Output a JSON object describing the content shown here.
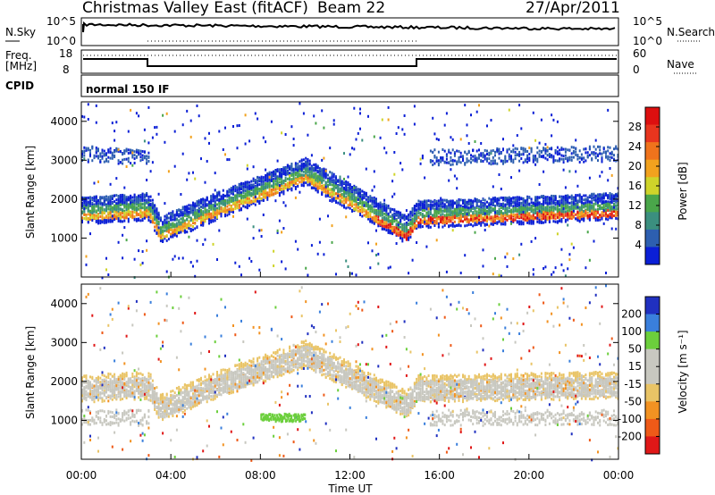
{
  "header": {
    "title": "Christmas Valley East (fitACF)",
    "beam": "Beam 22",
    "date": "27/Apr/2011"
  },
  "panels": {
    "nsky": {
      "left_label": "N.Sky",
      "left_ticks": [
        "10^5",
        "10^0"
      ],
      "right_ticks": [
        "10^5",
        "10^0"
      ],
      "right_label": "N.Search"
    },
    "freq": {
      "left_label_1": "Freq.",
      "left_label_2": "[MHz]",
      "left_ticks": [
        "18",
        "8"
      ],
      "right_ticks": [
        "60",
        "0"
      ],
      "right_label": "Nave"
    },
    "cpid": {
      "label": "CPID",
      "program": "normal 150 IF"
    }
  },
  "colors": {
    "power_scale": [
      "#0b1fd6",
      "#2d5fb0",
      "#3b8f7f",
      "#4aa64a",
      "#cfd42a",
      "#f2a21e",
      "#f0731c",
      "#e8351e",
      "#dd0f0f"
    ],
    "velocity_scale": [
      "#e01818",
      "#ee5a18",
      "#f29222",
      "#e9c466",
      "#c8c8c0",
      "#c8c8c0",
      "#6ccf3c",
      "#3a7fdc",
      "#2030c0"
    ]
  },
  "chart_data": [
    {
      "type": "heatmap",
      "name": "power",
      "xlabel": "",
      "ylabel": "Slant Range [km]",
      "x_range": [
        "00:00",
        "24:00"
      ],
      "ylim": [
        0,
        4500
      ],
      "yticks": [
        "1000",
        "2000",
        "3000",
        "4000"
      ],
      "colorbar": {
        "label": "Power [dB]",
        "ticks": [
          "4",
          "8",
          "12",
          "16",
          "20",
          "24",
          "28"
        ],
        "range": [
          0,
          30
        ]
      },
      "features": [
        {
          "band": "main backscatter",
          "x_hours": [
            0,
            3,
            3.5,
            6,
            10,
            14.5,
            15,
            24
          ],
          "range_km": [
            1600,
            1700,
            1100,
            1700,
            2600,
            1100,
            1500,
            1700
          ],
          "peak_power_dB": 28
        },
        {
          "band": "upper echoes",
          "x_hours": [
            0,
            3,
            15.5,
            24
          ],
          "range_km": [
            3200,
            3100,
            3100,
            3200
          ],
          "power_dB": 6
        }
      ]
    },
    {
      "type": "heatmap",
      "name": "velocity",
      "xlabel": "Time UT",
      "ylabel": "Slant Range [km]",
      "xticks": [
        "00:00",
        "04:00",
        "08:00",
        "12:00",
        "16:00",
        "20:00",
        "00:00"
      ],
      "ylim": [
        0,
        4500
      ],
      "yticks": [
        "1000",
        "2000",
        "3000",
        "4000"
      ],
      "colorbar": {
        "label": "Velocity [m s⁻¹]",
        "ticks": [
          "200",
          "100",
          "50",
          "15",
          "-15",
          "-50",
          "-100",
          "-200"
        ],
        "range": [
          -250,
          250
        ]
      },
      "features": [
        {
          "band": "ground scatter",
          "x_hours": [
            0,
            3,
            3.5,
            6,
            10,
            14.5,
            15,
            24
          ],
          "range_km": [
            1700,
            1800,
            1200,
            1800,
            2600,
            1300,
            1700,
            1800
          ],
          "velocity_ms": 0
        },
        {
          "band": "positive patch",
          "x_hours": [
            8,
            10
          ],
          "range_km": [
            1100,
            1100
          ],
          "velocity_ms": 50
        }
      ]
    }
  ]
}
